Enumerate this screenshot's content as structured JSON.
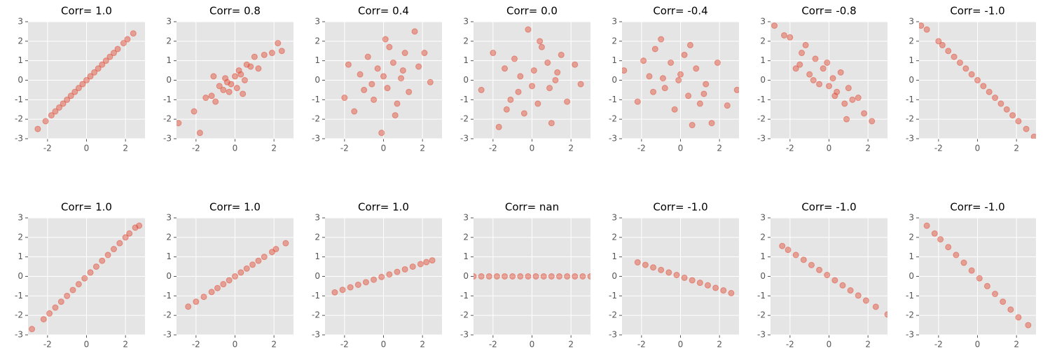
{
  "chart_data": [
    {
      "type": "scatter",
      "title": "Corr= 1.0",
      "color": "#E24A33",
      "grid": true,
      "xlim": [
        -3,
        3
      ],
      "ylim": [
        -3,
        3
      ],
      "xticks": [
        -2,
        0,
        2
      ],
      "yticks": [
        -3,
        -2,
        -1,
        0,
        1,
        2,
        3
      ],
      "x": [
        -2.5,
        -2.1,
        -1.8,
        -1.6,
        -1.4,
        -1.2,
        -1.0,
        -0.8,
        -0.6,
        -0.4,
        -0.2,
        0,
        0.2,
        0.4,
        0.6,
        0.8,
        1.0,
        1.2,
        1.4,
        1.6,
        1.9,
        2.1,
        2.4
      ],
      "y": [
        -2.5,
        -2.1,
        -1.8,
        -1.6,
        -1.4,
        -1.2,
        -1.0,
        -0.8,
        -0.6,
        -0.4,
        -0.2,
        0,
        0.2,
        0.4,
        0.6,
        0.8,
        1.0,
        1.2,
        1.4,
        1.6,
        1.9,
        2.1,
        2.4
      ]
    },
    {
      "type": "scatter",
      "title": "Corr= 0.8",
      "color": "#E24A33",
      "grid": true,
      "xlim": [
        -3,
        3
      ],
      "ylim": [
        -3,
        3
      ],
      "xticks": [
        -2,
        0,
        2
      ],
      "yticks": [
        -3,
        -2,
        -1,
        0,
        1,
        2,
        3
      ],
      "x": [
        -2.9,
        -2.1,
        -1.8,
        -1.5,
        -1.2,
        -1.0,
        -0.8,
        -0.6,
        -0.5,
        -0.3,
        -0.2,
        0,
        0.1,
        0.2,
        0.3,
        0.5,
        0.6,
        0.8,
        1.0,
        1.2,
        1.5,
        1.9,
        2.2,
        2.4,
        -0.4,
        0.4,
        -1.1
      ],
      "y": [
        -2.2,
        -1.6,
        -2.7,
        -0.9,
        -0.8,
        -1.1,
        -0.3,
        -0.5,
        0.1,
        -0.6,
        -0.2,
        0.2,
        -0.4,
        0.5,
        0.3,
        0.0,
        0.8,
        0.7,
        1.2,
        0.6,
        1.3,
        1.4,
        1.9,
        1.5,
        -0.1,
        -0.7,
        0.2
      ]
    },
    {
      "type": "scatter",
      "title": "Corr= 0.4",
      "color": "#E24A33",
      "grid": true,
      "xlim": [
        -3,
        3
      ],
      "ylim": [
        -3,
        3
      ],
      "xticks": [
        -2,
        0,
        2
      ],
      "yticks": [
        -3,
        -2,
        -1,
        0,
        1,
        2,
        3
      ],
      "x": [
        -2.0,
        -1.8,
        -1.5,
        -1.2,
        -1.0,
        -0.8,
        -0.5,
        -0.3,
        -0.1,
        0,
        0.2,
        0.3,
        0.5,
        0.7,
        0.9,
        1.1,
        1.3,
        1.6,
        1.8,
        2.1,
        2.4,
        -0.6,
        0.1,
        0.6,
        1.0
      ],
      "y": [
        -0.9,
        0.8,
        -1.6,
        0.3,
        -0.5,
        1.2,
        -1.0,
        0.6,
        -2.7,
        0.2,
        -0.4,
        1.7,
        0.9,
        -1.2,
        0.1,
        1.4,
        -0.6,
        2.5,
        0.7,
        1.4,
        -0.1,
        -0.2,
        2.1,
        -1.8,
        0.5
      ]
    },
    {
      "type": "scatter",
      "title": "Corr= 0.0",
      "color": "#E24A33",
      "grid": true,
      "xlim": [
        -3,
        3
      ],
      "ylim": [
        -3,
        3
      ],
      "xticks": [
        -2,
        0,
        2
      ],
      "yticks": [
        -3,
        -2,
        -1,
        0,
        1,
        2,
        3
      ],
      "x": [
        -2.6,
        -2.0,
        -1.7,
        -1.4,
        -1.1,
        -0.9,
        -0.6,
        -0.4,
        -0.2,
        0,
        0.1,
        0.3,
        0.5,
        0.8,
        1.0,
        1.2,
        1.5,
        1.8,
        2.2,
        2.5,
        -0.7,
        0.4,
        0.9,
        -1.3,
        1.3
      ],
      "y": [
        -0.5,
        1.4,
        -2.4,
        0.6,
        -1.0,
        1.1,
        0.2,
        -1.7,
        2.6,
        -0.3,
        0.5,
        -1.2,
        1.7,
        0.9,
        -2.2,
        0.0,
        1.3,
        -1.1,
        0.8,
        -0.2,
        -0.6,
        2.0,
        -0.4,
        -1.5,
        0.4
      ]
    },
    {
      "type": "scatter",
      "title": "Corr= -0.4",
      "color": "#E24A33",
      "grid": true,
      "xlim": [
        -3,
        3
      ],
      "ylim": [
        -3,
        3
      ],
      "xticks": [
        -2,
        0,
        2
      ],
      "yticks": [
        -3,
        -2,
        -1,
        0,
        1,
        2,
        3
      ],
      "x": [
        -2.9,
        -2.2,
        -1.9,
        -1.6,
        -1.3,
        -1.0,
        -0.8,
        -0.5,
        -0.3,
        0,
        0.2,
        0.4,
        0.6,
        0.8,
        1.0,
        1.3,
        1.6,
        1.9,
        2.4,
        2.9,
        -0.9,
        -0.1,
        0.5,
        1.2,
        -1.4
      ],
      "y": [
        0.5,
        -1.1,
        1.0,
        0.2,
        1.6,
        2.1,
        -0.4,
        0.9,
        -1.5,
        0.3,
        1.3,
        -0.8,
        -2.3,
        0.6,
        -1.2,
        -0.2,
        -2.2,
        0.9,
        -1.3,
        -0.5,
        0.1,
        0.0,
        1.8,
        -0.7,
        -0.6
      ]
    },
    {
      "type": "scatter",
      "title": "Corr= -0.8",
      "color": "#E24A33",
      "grid": true,
      "xlim": [
        -3,
        3
      ],
      "ylim": [
        -3,
        3
      ],
      "xticks": [
        -2,
        0,
        2
      ],
      "yticks": [
        -3,
        -2,
        -1,
        0,
        1,
        2,
        3
      ],
      "x": [
        -2.8,
        -2.3,
        -2.0,
        -1.7,
        -1.4,
        -1.2,
        -1.0,
        -0.7,
        -0.5,
        -0.3,
        -0.1,
        0,
        0.2,
        0.4,
        0.6,
        0.8,
        1.0,
        1.2,
        1.5,
        1.8,
        2.2,
        -0.8,
        0.3,
        0.9,
        -1.5
      ],
      "y": [
        2.8,
        2.3,
        2.2,
        0.6,
        1.4,
        1.8,
        0.3,
        1.1,
        -0.2,
        0.6,
        0.9,
        -0.3,
        0.1,
        -0.6,
        0.4,
        -1.2,
        -0.4,
        -1.0,
        -0.9,
        -1.7,
        -2.1,
        0.0,
        -0.8,
        -2.0,
        0.8
      ]
    },
    {
      "type": "scatter",
      "title": "Corr= -1.0",
      "color": "#E24A33",
      "grid": true,
      "xlim": [
        -3,
        3
      ],
      "ylim": [
        -3,
        3
      ],
      "xticks": [
        -2,
        0,
        2
      ],
      "yticks": [
        -3,
        -2,
        -1,
        0,
        1,
        2,
        3
      ],
      "x": [
        -2.9,
        -2.6,
        -2.0,
        -1.8,
        -1.5,
        -1.2,
        -0.9,
        -0.6,
        -0.3,
        0,
        0.3,
        0.6,
        0.9,
        1.2,
        1.5,
        1.8,
        2.1,
        2.5,
        2.9
      ],
      "y": [
        2.8,
        2.6,
        2.0,
        1.8,
        1.5,
        1.2,
        0.9,
        0.6,
        0.3,
        0,
        -0.3,
        -0.6,
        -0.9,
        -1.2,
        -1.5,
        -1.8,
        -2.1,
        -2.5,
        -2.9
      ]
    },
    {
      "type": "scatter",
      "title": "Corr= 1.0",
      "color": "#E24A33",
      "grid": true,
      "xlim": [
        -3,
        3
      ],
      "ylim": [
        -3,
        3
      ],
      "xticks": [
        -2,
        0,
        2
      ],
      "yticks": [
        -3,
        -2,
        -1,
        0,
        1,
        2,
        3
      ],
      "x": [
        -2.8,
        -2.2,
        -1.9,
        -1.6,
        -1.3,
        -1.0,
        -0.7,
        -0.4,
        -0.1,
        0.2,
        0.5,
        0.8,
        1.1,
        1.4,
        1.7,
        2.0,
        2.2,
        2.5,
        2.7
      ],
      "y": [
        -2.7,
        -2.2,
        -1.9,
        -1.6,
        -1.3,
        -1.0,
        -0.7,
        -0.4,
        -0.1,
        0.2,
        0.5,
        0.8,
        1.1,
        1.4,
        1.7,
        2.0,
        2.2,
        2.5,
        2.6
      ]
    },
    {
      "type": "scatter",
      "title": "Corr= 1.0",
      "color": "#E24A33",
      "grid": true,
      "xlim": [
        -3,
        3
      ],
      "ylim": [
        -3,
        3
      ],
      "xticks": [
        -2,
        0,
        2
      ],
      "yticks": [
        -3,
        -2,
        -1,
        0,
        1,
        2,
        3
      ],
      "x": [
        -2.4,
        -2.0,
        -1.6,
        -1.2,
        -0.9,
        -0.6,
        -0.3,
        0,
        0.3,
        0.6,
        0.9,
        1.2,
        1.5,
        1.9,
        2.1,
        2.6
      ],
      "y": [
        -1.55,
        -1.3,
        -1.05,
        -0.8,
        -0.6,
        -0.4,
        -0.2,
        0,
        0.2,
        0.4,
        0.6,
        0.8,
        1.0,
        1.25,
        1.4,
        1.7
      ]
    },
    {
      "type": "scatter",
      "title": "Corr= 1.0",
      "color": "#E24A33",
      "grid": true,
      "xlim": [
        -3,
        3
      ],
      "ylim": [
        -3,
        3
      ],
      "xticks": [
        -2,
        0,
        2
      ],
      "yticks": [
        -3,
        -2,
        -1,
        0,
        1,
        2,
        3
      ],
      "x": [
        -2.5,
        -2.1,
        -1.7,
        -1.3,
        -0.9,
        -0.5,
        -0.1,
        0.3,
        0.7,
        1.1,
        1.5,
        1.9,
        2.2,
        2.5
      ],
      "y": [
        -0.82,
        -0.69,
        -0.56,
        -0.43,
        -0.3,
        -0.17,
        -0.03,
        0.1,
        0.23,
        0.36,
        0.5,
        0.63,
        0.73,
        0.82
      ]
    },
    {
      "type": "scatter",
      "title": "Corr= nan",
      "color": "#E24A33",
      "grid": true,
      "xlim": [
        -3,
        3
      ],
      "ylim": [
        -3,
        3
      ],
      "xticks": [
        -2,
        0,
        2
      ],
      "yticks": [
        -3,
        -2,
        -1,
        0,
        1,
        2,
        3
      ],
      "x": [
        -3.0,
        -2.6,
        -2.2,
        -1.8,
        -1.4,
        -1.0,
        -0.6,
        -0.2,
        0.2,
        0.6,
        1.0,
        1.4,
        1.8,
        2.2,
        2.6,
        3.0
      ],
      "y": [
        0,
        0,
        0,
        0,
        0,
        0,
        0,
        0,
        0,
        0,
        0,
        0,
        0,
        0,
        0,
        0
      ]
    },
    {
      "type": "scatter",
      "title": "Corr= -1.0",
      "color": "#E24A33",
      "grid": true,
      "xlim": [
        -3,
        3
      ],
      "ylim": [
        -3,
        3
      ],
      "xticks": [
        -2,
        0,
        2
      ],
      "yticks": [
        -3,
        -2,
        -1,
        0,
        1,
        2,
        3
      ],
      "x": [
        -2.2,
        -1.8,
        -1.4,
        -1.0,
        -0.6,
        -0.2,
        0.2,
        0.6,
        1.0,
        1.4,
        1.8,
        2.2,
        2.6
      ],
      "y": [
        0.72,
        0.59,
        0.46,
        0.33,
        0.2,
        0.07,
        -0.07,
        -0.2,
        -0.33,
        -0.46,
        -0.59,
        -0.72,
        -0.86
      ]
    },
    {
      "type": "scatter",
      "title": "Corr= -1.0",
      "color": "#E24A33",
      "grid": true,
      "xlim": [
        -3,
        3
      ],
      "ylim": [
        -3,
        3
      ],
      "xticks": [
        -2,
        0,
        2
      ],
      "yticks": [
        -3,
        -2,
        -1,
        0,
        1,
        2,
        3
      ],
      "x": [
        -2.4,
        -2.1,
        -1.7,
        -1.3,
        -0.9,
        -0.5,
        -0.1,
        0.3,
        0.7,
        1.1,
        1.5,
        1.9,
        2.4,
        3.0
      ],
      "y": [
        1.56,
        1.36,
        1.1,
        0.85,
        0.58,
        0.33,
        0.07,
        -0.2,
        -0.46,
        -0.72,
        -0.98,
        -1.24,
        -1.56,
        -1.95
      ]
    },
    {
      "type": "scatter",
      "title": "Corr= -1.0",
      "color": "#E24A33",
      "grid": true,
      "xlim": [
        -3,
        3
      ],
      "ylim": [
        -3,
        3
      ],
      "xticks": [
        -2,
        0,
        2
      ],
      "yticks": [
        -3,
        -2,
        -1,
        0,
        1,
        2,
        3
      ],
      "x": [
        -2.6,
        -2.2,
        -1.9,
        -1.5,
        -1.1,
        -0.7,
        -0.3,
        0.1,
        0.5,
        0.9,
        1.3,
        1.7,
        2.1,
        2.6
      ],
      "y": [
        2.6,
        2.2,
        1.9,
        1.5,
        1.1,
        0.7,
        0.3,
        -0.1,
        -0.5,
        -0.9,
        -1.3,
        -1.7,
        -2.1,
        -2.5
      ]
    }
  ]
}
